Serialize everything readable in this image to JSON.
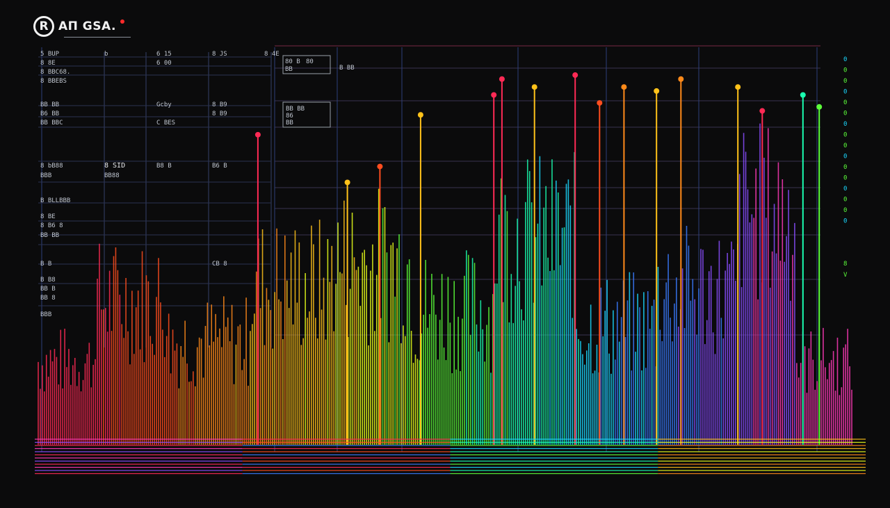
{
  "brand": {
    "logo_glyph": "R",
    "name": "AΠ GSA."
  },
  "left_panel": {
    "rows": [
      [
        "5 BUP",
        "b",
        "6 15",
        "8 JS",
        "8 4E"
      ],
      [
        "8 8E",
        "",
        "6 00",
        "",
        ""
      ],
      [
        "8 BBC68.",
        "",
        "",
        "",
        ""
      ],
      [
        "8 BBEBS",
        "",
        "",
        "",
        ""
      ],
      [
        "BB BB",
        "",
        "Gcby",
        "8 B9",
        ""
      ],
      [
        "B6 BB",
        "",
        "",
        "8 B9",
        ""
      ],
      [
        "BB BBC",
        "",
        "C BES",
        "",
        ""
      ],
      [
        "8 bB88",
        "8 SID",
        "B8 B",
        "B6 B",
        ""
      ],
      [
        "BBB",
        "BB88",
        "",
        "",
        ""
      ],
      [
        "B BLLBBB",
        "",
        "",
        "",
        ""
      ],
      [
        "8 BE",
        "",
        "",
        "",
        ""
      ],
      [
        "8 B6 8",
        "",
        "",
        "",
        ""
      ],
      [
        "BB BB",
        "",
        "",
        "",
        ""
      ],
      [
        "B B",
        "",
        "",
        "CB 8",
        ""
      ],
      [
        "B B8",
        "",
        "",
        "",
        ""
      ],
      [
        "BB B",
        "",
        "",
        "",
        ""
      ],
      [
        "BB 8",
        "",
        "",
        "",
        ""
      ],
      [
        "BBB",
        "",
        "",
        "",
        ""
      ]
    ]
  },
  "top_panel": {
    "box1": [
      "80 B",
      "80",
      "BB"
    ],
    "box1_side": "B BB",
    "box2": [
      "BB BB",
      "86",
      "BB"
    ]
  },
  "right_axis": {
    "ticks": [
      "0",
      "0",
      "0",
      "0",
      "0",
      "0",
      "0",
      "0",
      "0",
      "0",
      "0",
      "0",
      "0",
      "0",
      "0",
      "0",
      "8",
      "V"
    ]
  },
  "chart_data": {
    "type": "bar",
    "x": [
      1,
      400
    ],
    "ylim": [
      0,
      100
    ],
    "grid": true,
    "colors": [
      "#ff2a55",
      "#ff4d1f",
      "#ff8a1a",
      "#ffc21a",
      "#e8ff1a",
      "#5cff3a",
      "#1affb0",
      "#1ad8ff",
      "#3a7bff",
      "#8a4dff",
      "#ff3ab8"
    ],
    "bands": [
      {
        "x0": 0.0,
        "x1": 0.07,
        "lo": 12,
        "hi": 30
      },
      {
        "x0": 0.07,
        "x1": 0.16,
        "lo": 20,
        "hi": 52
      },
      {
        "x0": 0.16,
        "x1": 0.26,
        "lo": 14,
        "hi": 38
      },
      {
        "x0": 0.26,
        "x1": 0.36,
        "lo": 22,
        "hi": 58
      },
      {
        "x0": 0.36,
        "x1": 0.46,
        "lo": 25,
        "hi": 66
      },
      {
        "x0": 0.46,
        "x1": 0.56,
        "lo": 18,
        "hi": 50
      },
      {
        "x0": 0.56,
        "x1": 0.66,
        "lo": 30,
        "hi": 74
      },
      {
        "x0": 0.66,
        "x1": 0.76,
        "lo": 16,
        "hi": 44
      },
      {
        "x0": 0.76,
        "x1": 0.86,
        "lo": 22,
        "hi": 56
      },
      {
        "x0": 0.86,
        "x1": 0.93,
        "lo": 35,
        "hi": 82
      },
      {
        "x0": 0.93,
        "x1": 1.0,
        "lo": 12,
        "hi": 30
      }
    ],
    "peaks": [
      {
        "x": 0.27,
        "v": 78,
        "c": "#ff2a55"
      },
      {
        "x": 0.38,
        "v": 66,
        "c": "#ffc21a"
      },
      {
        "x": 0.42,
        "v": 70,
        "c": "#ff4d1f"
      },
      {
        "x": 0.47,
        "v": 83,
        "c": "#ffc21a"
      },
      {
        "x": 0.56,
        "v": 88,
        "c": "#ff2a55"
      },
      {
        "x": 0.57,
        "v": 92,
        "c": "#ff2a55"
      },
      {
        "x": 0.61,
        "v": 90,
        "c": "#ffc21a"
      },
      {
        "x": 0.66,
        "v": 93,
        "c": "#ff2a55"
      },
      {
        "x": 0.69,
        "v": 86,
        "c": "#ff4d1f"
      },
      {
        "x": 0.72,
        "v": 90,
        "c": "#ff8a1a"
      },
      {
        "x": 0.76,
        "v": 89,
        "c": "#ffc21a"
      },
      {
        "x": 0.79,
        "v": 92,
        "c": "#ff8a1a"
      },
      {
        "x": 0.86,
        "v": 90,
        "c": "#ffc21a"
      },
      {
        "x": 0.89,
        "v": 84,
        "c": "#ff2a55"
      },
      {
        "x": 0.94,
        "v": 88,
        "c": "#1affb0"
      },
      {
        "x": 0.96,
        "v": 85,
        "c": "#5cff3a"
      }
    ]
  }
}
